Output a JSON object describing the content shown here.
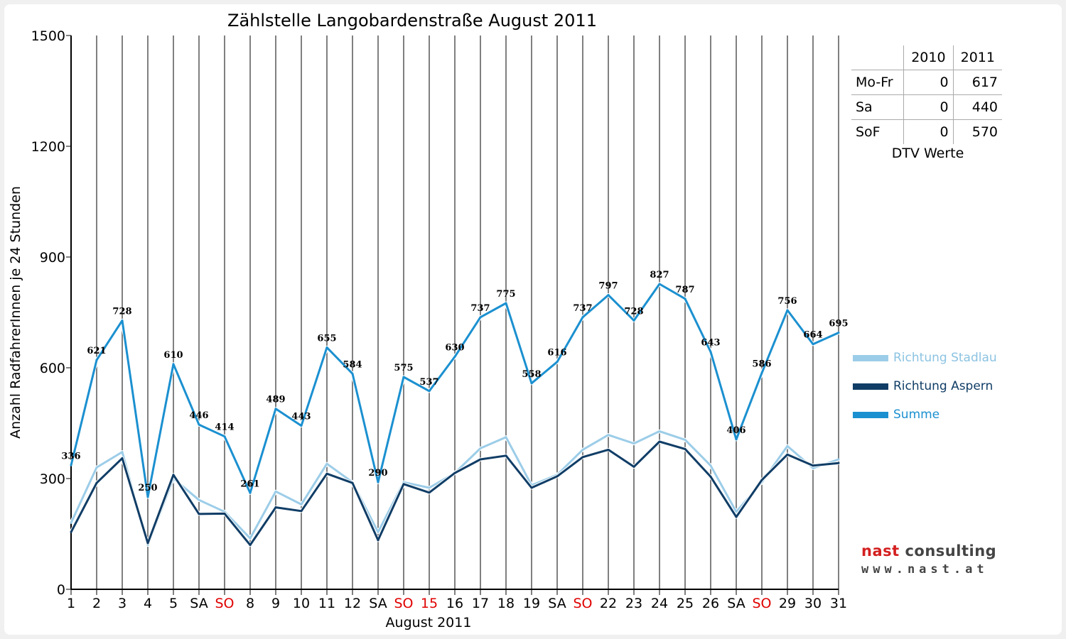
{
  "chart_data": {
    "type": "line",
    "title": "Zählstelle Langobardenstraße August 2011",
    "xlabel": "August 2011",
    "ylabel": "Anzahl RadfahrerInnen je 24 Stunden",
    "ylim": [
      0,
      1500
    ],
    "yticks": [
      0,
      300,
      600,
      900,
      1200,
      1500
    ],
    "grid": false,
    "legend_position": "right",
    "categories": [
      "1",
      "2",
      "3",
      "4",
      "5",
      "SA",
      "SO",
      "8",
      "9",
      "10",
      "11",
      "12",
      "SA",
      "SO",
      "15",
      "16",
      "17",
      "18",
      "19",
      "SA",
      "SO",
      "22",
      "23",
      "24",
      "25",
      "26",
      "SA",
      "SO",
      "29",
      "30",
      "31"
    ],
    "red_categories": [
      6,
      13,
      14,
      20,
      27
    ],
    "series": [
      {
        "name": "Richtung Stadlau",
        "color": "#9ccde8",
        "values": [
          180,
          330,
          372,
          120,
          300,
          242,
          210,
          138,
          265,
          230,
          340,
          290,
          155,
          290,
          275,
          315,
          382,
          412,
          282,
          310,
          378,
          418,
          395,
          428,
          405,
          335,
          210,
          290,
          388,
          328,
          352
        ]
      },
      {
        "name": "Richtung Aspern",
        "color": "#103d66",
        "values": [
          155,
          288,
          355,
          125,
          310,
          204,
          205,
          120,
          222,
          212,
          313,
          288,
          133,
          285,
          262,
          315,
          352,
          362,
          275,
          306,
          358,
          378,
          332,
          400,
          380,
          305,
          196,
          296,
          365,
          335,
          342
        ]
      },
      {
        "name": "Summe",
        "color": "#1b90d0",
        "values": [
          336,
          621,
          728,
          250,
          610,
          446,
          414,
          261,
          489,
          443,
          655,
          584,
          290,
          575,
          537,
          630,
          737,
          775,
          558,
          616,
          737,
          797,
          728,
          827,
          787,
          643,
          406,
          586,
          756,
          664,
          695
        ]
      }
    ],
    "data_labels": [
      "336",
      "621",
      "728",
      "250",
      "610",
      "446",
      "414",
      "261",
      "489",
      "443",
      "655",
      "584",
      "290",
      "575",
      "537",
      "630",
      "737",
      "775",
      "558",
      "616",
      "737",
      "797",
      "728",
      "827",
      "787",
      "643",
      "406",
      "586",
      "756",
      "664",
      "695"
    ]
  },
  "dtv_table": {
    "headers": [
      "",
      "2010",
      "2011"
    ],
    "rows": [
      {
        "label": "Mo-Fr",
        "v2010": "0",
        "v2011": "617"
      },
      {
        "label": "Sa",
        "v2010": "0",
        "v2011": "440"
      },
      {
        "label": "SoF",
        "v2010": "0",
        "v2011": "570"
      }
    ],
    "caption": "DTV Werte"
  },
  "legend": {
    "items": [
      {
        "label": "Richtung Stadlau",
        "color": "#9ccde8",
        "text_color": "#8cc3e2"
      },
      {
        "label": "Richtung Aspern",
        "color": "#103d66",
        "text_color": "#103d66"
      },
      {
        "label": "Summe",
        "color": "#1b90d0",
        "text_color": "#1b90d0"
      }
    ]
  },
  "logo": {
    "part1": "nast",
    "part2": "consulting",
    "url_text": "www.nast.at"
  },
  "colors": {
    "weekend_red": "#e00000",
    "background": "#f0f0f0"
  }
}
